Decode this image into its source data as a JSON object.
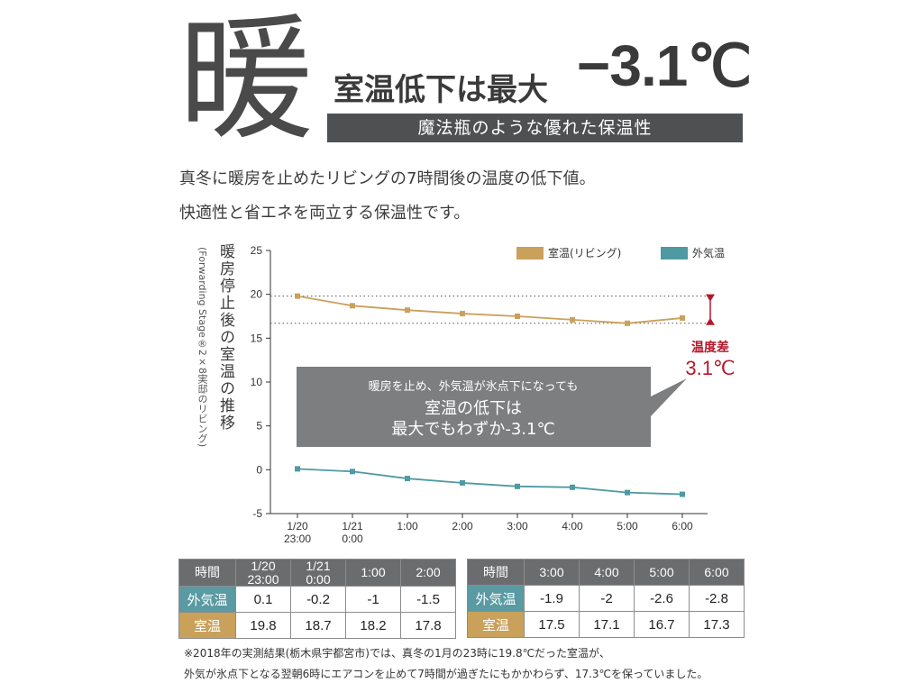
{
  "header": {
    "big_kanji": "暖",
    "headline": "室温低下は最大",
    "headline_value": "−3.1℃",
    "banner": "魔法瓶のような優れた保温性"
  },
  "description": {
    "line1": "真冬に暖房を止めたリビングの7時間後の温度の低下値。",
    "line2": "快適性と省エネを両立する保温性です。"
  },
  "chart_data": {
    "type": "line",
    "title": "",
    "ylabel": "暖房停止後の室温の推移",
    "ylabel_sub": "(Forwarding Stage®2×8実邸のリビング)",
    "xlabel": "",
    "categories": [
      "1/20\n23:00",
      "1/21\n0:00",
      "1:00",
      "2:00",
      "3:00",
      "4:00",
      "5:00",
      "6:00"
    ],
    "ylim": [
      -5,
      25
    ],
    "yticks": [
      25,
      20,
      15,
      10,
      5,
      0,
      -5
    ],
    "grid": false,
    "legend_position": "top-right",
    "series": [
      {
        "name": "室温(リビング)",
        "color": "#c9a15a",
        "values": [
          19.8,
          18.7,
          18.2,
          17.8,
          17.5,
          17.1,
          16.7,
          17.3
        ]
      },
      {
        "name": "外気温",
        "color": "#4e9aa3",
        "values": [
          0.1,
          -0.2,
          -1,
          -1.5,
          -1.9,
          -2,
          -2.6,
          -2.8
        ]
      }
    ],
    "reference_lines": [
      19.8,
      16.7
    ],
    "annotation": {
      "line1": "暖房を止め、外気温が氷点下になっても",
      "line2": "室温の低下は",
      "line3": "最大でもわずか-3.1℃"
    },
    "difference_label": "温度差",
    "difference_value": "3.1℃",
    "difference_color": "#b3182b"
  },
  "table_left": {
    "header_label": "時間",
    "times": [
      "1/20\n23:00",
      "1/21\n0:00",
      "1:00",
      "2:00"
    ],
    "outdoor_label": "外気温",
    "outdoor": [
      "0.1",
      "-0.2",
      "-1",
      "-1.5"
    ],
    "indoor_label": "室温",
    "indoor": [
      "19.8",
      "18.7",
      "18.2",
      "17.8"
    ]
  },
  "table_right": {
    "header_label": "時間",
    "times": [
      "3:00",
      "4:00",
      "5:00",
      "6:00"
    ],
    "outdoor_label": "外気温",
    "outdoor": [
      "-1.9",
      "-2",
      "-2.6",
      "-2.8"
    ],
    "indoor_label": "室温",
    "indoor": [
      "17.5",
      "17.1",
      "16.7",
      "17.3"
    ]
  },
  "footnote": {
    "line1": "※2018年の実測結果(栃木県宇都宮市)では、真冬の1月の23時に19.8℃だった室温が、",
    "line2": "外気が氷点下となる翌朝6時にエアコンを止めて7時間が過ぎたにもかかわらず、17.3℃を保っていました。"
  }
}
